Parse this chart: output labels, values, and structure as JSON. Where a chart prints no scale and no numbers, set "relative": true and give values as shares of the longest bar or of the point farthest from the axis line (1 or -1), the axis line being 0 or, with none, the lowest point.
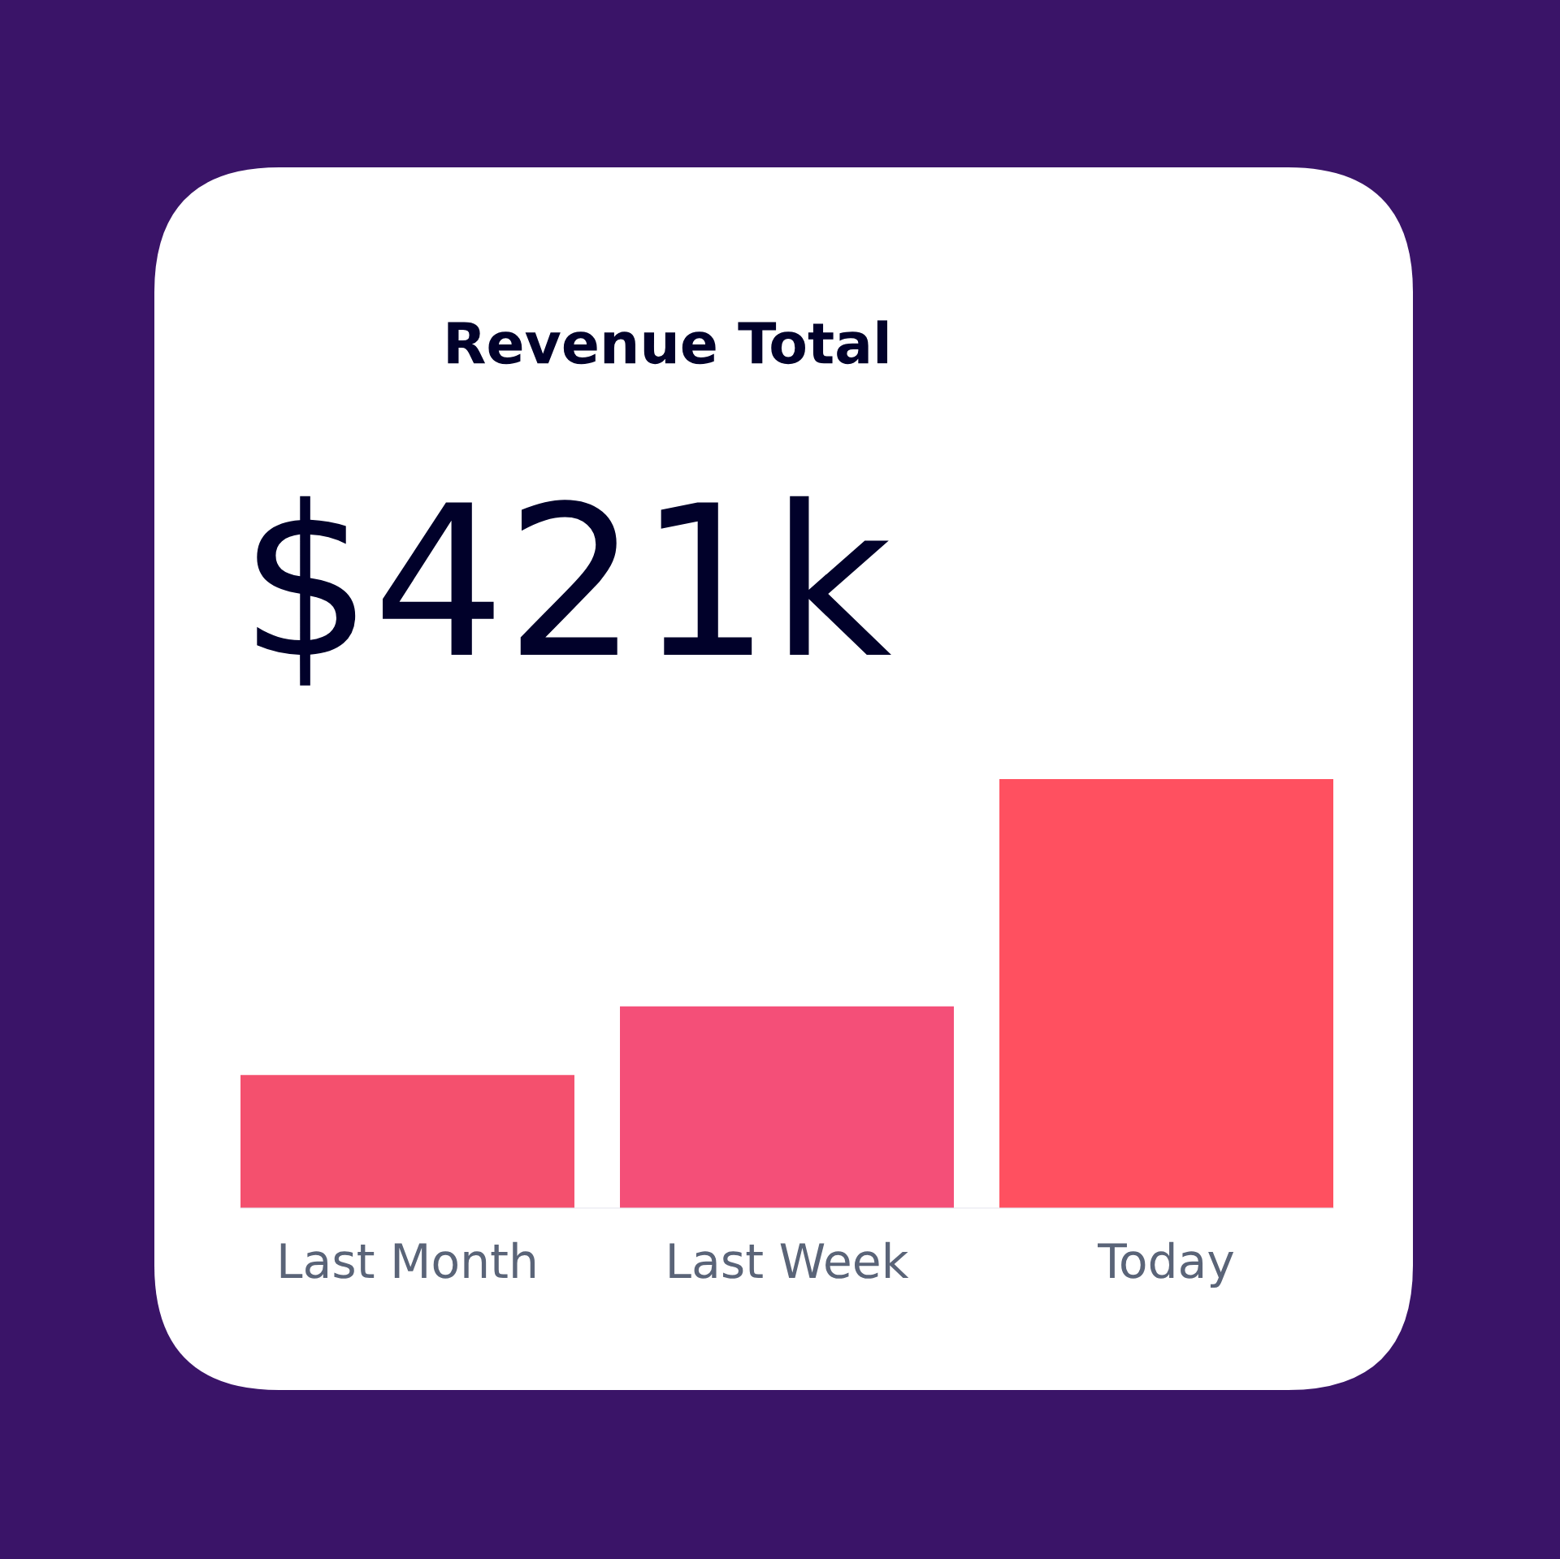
{
  "chart_data": {
    "type": "bar",
    "title": "Revenue Total",
    "subtitle": "$421k",
    "categories": [
      "Last Month",
      "Last Week",
      "Today"
    ],
    "values": [
      0.31,
      0.47,
      1
    ],
    "colors": [
      "#f4506e",
      "#f44f78",
      "#ff5060"
    ],
    "relative": true
  }
}
